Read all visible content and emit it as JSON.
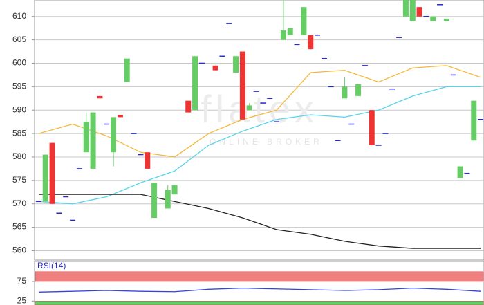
{
  "chart_data": [
    {
      "type": "candlestick",
      "ylim": [
        558,
        613.5
      ],
      "yticks": [
        560,
        565,
        570,
        575,
        580,
        585,
        590,
        595,
        600,
        605,
        610
      ],
      "grid": true,
      "xlim": [
        -0.6,
        65.5
      ],
      "up_color": "#66cc66",
      "down_color": "#ee3333",
      "flat_color": "#2a2acc",
      "open": [
        570.5,
        570.5,
        583,
        568,
        571.5,
        566.5,
        577.5,
        581,
        577.5,
        593,
        587,
        581,
        589,
        596,
        585,
        580.5,
        581,
        567,
        null,
        569,
        572,
        null,
        592,
        590,
        600,
        null,
        599.5,
        601.5,
        608.5,
        598,
        602.5,
        590,
        594,
        591.5,
        592.5,
        587.5,
        605,
        606,
        604,
        606,
        606,
        606,
        601,
        595,
        583.5,
        592.5,
        587,
        593,
        599.5,
        590,
        582.5,
        585,
        594.5,
        605.5,
        610,
        609,
        612,
        610,
        609,
        612.5,
        609,
        597.5,
        575.5,
        576.5,
        583.5,
        588
      ],
      "high": [
        570.5,
        580.5,
        583,
        568,
        571.5,
        566.5,
        577.5,
        589.5,
        589.5,
        593,
        587,
        588.5,
        589,
        601,
        585,
        580.5,
        581,
        574.5,
        null,
        574,
        574,
        null,
        592,
        601.5,
        600,
        null,
        599.5,
        601.5,
        608.5,
        601.5,
        602.5,
        591.5,
        594,
        591.5,
        592.5,
        587.5,
        613.5,
        607.5,
        604,
        612,
        606,
        606,
        601,
        595,
        583.5,
        597,
        587,
        595.5,
        599.5,
        590,
        582.5,
        585,
        594.5,
        605.5,
        613.5,
        613.5,
        612,
        610,
        610,
        612.5,
        609.5,
        597.5,
        578,
        576.5,
        592,
        588
      ],
      "low": [
        570.5,
        570.5,
        570,
        568,
        571.5,
        566.5,
        577.5,
        581,
        577.5,
        592.5,
        587,
        578,
        588.5,
        596,
        585,
        580.5,
        577.5,
        567,
        null,
        569,
        572,
        null,
        589.5,
        590,
        600,
        null,
        598.5,
        601.5,
        608.5,
        598,
        588,
        590,
        594,
        591.5,
        592.5,
        587.5,
        605,
        606,
        604,
        606,
        603,
        606,
        601,
        595,
        583.5,
        592.5,
        587,
        593,
        599.5,
        582.5,
        582.5,
        585,
        594.5,
        605.5,
        610,
        609,
        610,
        610,
        609,
        612.5,
        609,
        597.5,
        575.5,
        576.5,
        583.5,
        588
      ],
      "close": [
        570.5,
        580.5,
        570,
        568,
        571.5,
        566.5,
        577.5,
        587.5,
        589.5,
        592.5,
        587,
        588.5,
        588.5,
        601,
        585,
        580.5,
        577.5,
        574.5,
        null,
        573,
        574,
        null,
        589.5,
        601.5,
        600,
        null,
        598.5,
        601.5,
        608.5,
        601.5,
        588,
        591,
        594,
        591.5,
        592.5,
        587.5,
        607,
        607.5,
        604,
        612,
        603,
        606,
        601,
        595,
        583.5,
        595,
        587,
        595.5,
        599.5,
        582.5,
        582.5,
        585,
        594.5,
        605.5,
        613.5,
        613.5,
        610,
        610,
        610,
        612.5,
        609.5,
        597.5,
        578,
        576.5,
        592,
        588
      ],
      "series": [
        {
          "color": "#f5b83d",
          "x": [
            0,
            5,
            10,
            15,
            20,
            25,
            30,
            35,
            40,
            45,
            50,
            55,
            60,
            65
          ],
          "values": [
            585,
            587,
            584.5,
            581,
            580,
            585,
            588,
            590,
            598,
            598.5,
            596,
            599,
            599.5,
            597
          ]
        },
        {
          "color": "#55d4ec",
          "x": [
            0,
            5,
            10,
            15,
            20,
            25,
            30,
            35,
            40,
            45,
            50,
            55,
            60,
            65
          ],
          "values": [
            570.5,
            570,
            571.5,
            574.5,
            577,
            582.5,
            585.5,
            588,
            589,
            588.5,
            590,
            593,
            595,
            595
          ]
        },
        {
          "color": "#222222",
          "x": [
            0,
            5,
            10,
            15,
            20,
            25,
            30,
            35,
            40,
            45,
            50,
            55,
            60,
            65
          ],
          "values": [
            572,
            572,
            572,
            572,
            570.5,
            569,
            567,
            564.5,
            563.5,
            562,
            561,
            560.5,
            560.5,
            560.5
          ]
        }
      ],
      "watermark": {
        "title": "flatex",
        "subtitle": "ONLINE BROKER"
      }
    },
    {
      "type": "line",
      "title": "RSI(14)",
      "ylim": [
        15,
        105
      ],
      "yticks": [
        25,
        75
      ],
      "xlim": [
        -0.6,
        65.5
      ],
      "bands": [
        {
          "from": 75,
          "to": 100,
          "color": "#f08080"
        },
        {
          "from": 15,
          "to": 25,
          "color": "#66cc66"
        }
      ],
      "series": [
        {
          "color": "#3344dd",
          "x": [
            0,
            5,
            10,
            15,
            20,
            25,
            30,
            35,
            40,
            45,
            50,
            55,
            60,
            65
          ],
          "values": [
            48,
            50,
            52,
            50,
            49,
            55,
            58,
            56,
            54,
            52,
            54,
            58,
            55,
            50
          ]
        }
      ]
    }
  ]
}
